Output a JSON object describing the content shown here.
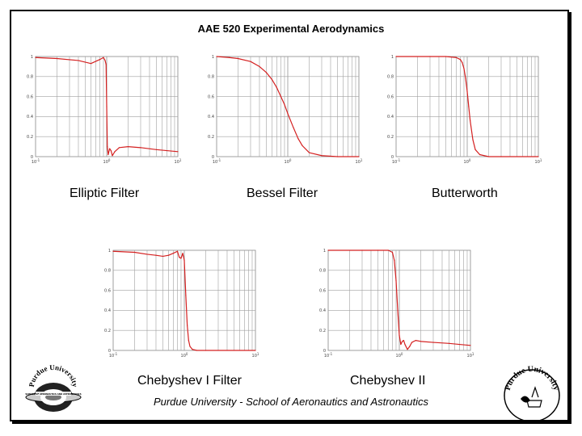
{
  "header": {
    "title": "AAE 520 Experimental Aerodynamics"
  },
  "footer": {
    "text": "Purdue University - School of Aeronautics and Astronautics"
  },
  "labels": {
    "elliptic": "Elliptic Filter",
    "bessel": "Bessel Filter",
    "butterworth": "Butterworth",
    "chebyshev1": "Chebyshev I Filter",
    "chebyshev2": "Chebyshev II"
  },
  "logos": {
    "left_text": "Purdue University",
    "left_center": "SCHOOL OF AERONAUTICS AND ASTRONAUTICS",
    "right_text": "Purdue University"
  },
  "colors": {
    "curve": "#d42020",
    "grid": "#a0a0a0",
    "axis": "#888888"
  },
  "chart_data": [
    {
      "type": "line",
      "name": "elliptic",
      "xscale": "log",
      "xlim": [
        0.1,
        10
      ],
      "ylim": [
        0,
        1
      ],
      "yticks": [
        "0",
        "0.2",
        "0.4",
        "0.6",
        "0.8",
        "1"
      ],
      "xticks": [
        {
          "base": "10",
          "exp": "-1",
          "value": 0.1
        },
        {
          "base": "10",
          "exp": "0",
          "value": 1
        },
        {
          "base": "10",
          "exp": "1",
          "value": 10
        }
      ],
      "x": [
        0.1,
        0.2,
        0.4,
        0.6,
        0.8,
        0.9,
        0.95,
        0.98,
        1.0,
        1.02,
        1.05,
        1.1,
        1.15,
        1.2,
        1.3,
        1.5,
        2,
        3,
        5,
        7,
        10
      ],
      "y": [
        0.99,
        0.98,
        0.96,
        0.93,
        0.97,
        0.99,
        0.96,
        0.92,
        0.5,
        0.1,
        0.02,
        0.08,
        0.06,
        0.01,
        0.05,
        0.09,
        0.1,
        0.09,
        0.07,
        0.06,
        0.05
      ]
    },
    {
      "type": "line",
      "name": "bessel",
      "xscale": "log",
      "xlim": [
        0.1,
        10
      ],
      "ylim": [
        0,
        1
      ],
      "yticks": [
        "0",
        "0.2",
        "0.4",
        "0.6",
        "0.8",
        "1"
      ],
      "xticks": [
        {
          "base": "10",
          "exp": "-1",
          "value": 0.1
        },
        {
          "base": "10",
          "exp": "0",
          "value": 1
        },
        {
          "base": "10",
          "exp": "1",
          "value": 10
        }
      ],
      "x": [
        0.1,
        0.15,
        0.2,
        0.3,
        0.4,
        0.5,
        0.6,
        0.7,
        0.8,
        0.9,
        1.0,
        1.2,
        1.4,
        1.6,
        2,
        3,
        5,
        10
      ],
      "y": [
        1,
        0.99,
        0.98,
        0.95,
        0.9,
        0.84,
        0.77,
        0.69,
        0.6,
        0.52,
        0.43,
        0.29,
        0.18,
        0.11,
        0.04,
        0.01,
        0,
        0
      ]
    },
    {
      "type": "line",
      "name": "butterworth",
      "xscale": "log",
      "xlim": [
        0.1,
        10
      ],
      "ylim": [
        0,
        1
      ],
      "yticks": [
        "0",
        "0.2",
        "0.4",
        "0.6",
        "0.8",
        "1"
      ],
      "xticks": [
        {
          "base": "10",
          "exp": "-1",
          "value": 0.1
        },
        {
          "base": "10",
          "exp": "0",
          "value": 1
        },
        {
          "base": "10",
          "exp": "1",
          "value": 10
        }
      ],
      "x": [
        0.1,
        0.3,
        0.5,
        0.7,
        0.8,
        0.85,
        0.9,
        0.95,
        1.0,
        1.05,
        1.1,
        1.2,
        1.3,
        1.5,
        2,
        3,
        10
      ],
      "y": [
        1,
        1,
        1,
        0.99,
        0.97,
        0.94,
        0.88,
        0.78,
        0.65,
        0.5,
        0.36,
        0.17,
        0.07,
        0.02,
        0,
        0,
        0
      ]
    },
    {
      "type": "line",
      "name": "chebyshev1",
      "xscale": "log",
      "xlim": [
        0.1,
        10
      ],
      "ylim": [
        0,
        1
      ],
      "yticks": [
        "0",
        "0.2",
        "0.4",
        "0.6",
        "0.8",
        "1"
      ],
      "xticks": [
        {
          "base": "10",
          "exp": "-1",
          "value": 0.1
        },
        {
          "base": "10",
          "exp": "0",
          "value": 1
        },
        {
          "base": "10",
          "exp": "1",
          "value": 10
        }
      ],
      "x": [
        0.1,
        0.2,
        0.3,
        0.4,
        0.5,
        0.6,
        0.7,
        0.8,
        0.85,
        0.9,
        0.95,
        1.0,
        1.05,
        1.1,
        1.15,
        1.2,
        1.3,
        1.5,
        2,
        10
      ],
      "y": [
        0.99,
        0.98,
        0.96,
        0.95,
        0.94,
        0.95,
        0.97,
        0.99,
        0.93,
        0.92,
        0.97,
        0.9,
        0.55,
        0.25,
        0.1,
        0.04,
        0.01,
        0,
        0,
        0
      ]
    },
    {
      "type": "line",
      "name": "chebyshev2",
      "xscale": "log",
      "xlim": [
        0.1,
        10
      ],
      "ylim": [
        0,
        1
      ],
      "yticks": [
        "0",
        "0.2",
        "0.4",
        "0.6",
        "0.8",
        "1"
      ],
      "xticks": [
        {
          "base": "10",
          "exp": "-1",
          "value": 0.1
        },
        {
          "base": "10",
          "exp": "0",
          "value": 1
        },
        {
          "base": "10",
          "exp": "1",
          "value": 10
        }
      ],
      "x": [
        0.1,
        0.3,
        0.5,
        0.7,
        0.8,
        0.85,
        0.9,
        0.95,
        1.0,
        1.05,
        1.1,
        1.15,
        1.2,
        1.3,
        1.4,
        1.5,
        1.7,
        2,
        3,
        5,
        7,
        10
      ],
      "y": [
        1,
        1,
        1,
        1,
        0.98,
        0.9,
        0.7,
        0.4,
        0.15,
        0.06,
        0.09,
        0.1,
        0.06,
        0.01,
        0.04,
        0.08,
        0.1,
        0.09,
        0.08,
        0.07,
        0.06,
        0.05
      ]
    }
  ]
}
